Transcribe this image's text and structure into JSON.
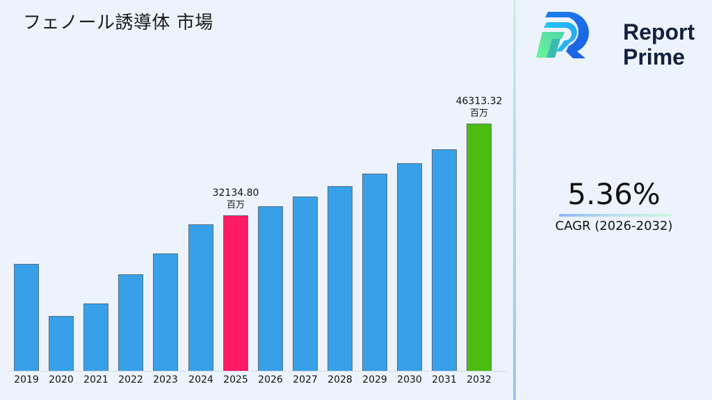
{
  "title": "フェノール誘導体 市場",
  "brand": {
    "line1": "Report",
    "line2": "Prime"
  },
  "cagr": {
    "value": "5.36%",
    "label": "CAGR (2026-2032)"
  },
  "colors": {
    "default_bar": "#38a0e8",
    "highlight_start": "#ff1a66",
    "highlight_end": "#4cbd10",
    "background": "#ecf3fd"
  },
  "annotations": [
    {
      "year": "2025",
      "value": "32134.80",
      "unit": "百万"
    },
    {
      "year": "2032",
      "value": "46313.32",
      "unit": "百万"
    }
  ],
  "chart_data": {
    "type": "bar",
    "title": "フェノール誘導体 市場",
    "xlabel": "",
    "ylabel": "",
    "unit": "百万",
    "categories": [
      "2019",
      "2020",
      "2021",
      "2022",
      "2023",
      "2024",
      "2025",
      "2026",
      "2027",
      "2028",
      "2029",
      "2030",
      "2031",
      "2032"
    ],
    "values": [
      24617,
      16562,
      18495,
      23006,
      26227,
      30738,
      32134.8,
      33531,
      35034,
      36646,
      38579,
      40190,
      42338,
      46313.32
    ],
    "bar_colors": [
      "#38a0e8",
      "#38a0e8",
      "#38a0e8",
      "#38a0e8",
      "#38a0e8",
      "#38a0e8",
      "#ff1a66",
      "#38a0e8",
      "#38a0e8",
      "#38a0e8",
      "#38a0e8",
      "#38a0e8",
      "#38a0e8",
      "#4cbd10"
    ],
    "labeled_points": {
      "2025": "32134.80 百万",
      "2032": "46313.32 百万"
    },
    "grid": false,
    "legend": "none",
    "y_axis_visible": false,
    "cagr": "5.36%",
    "cagr_period": "2026-2032"
  }
}
